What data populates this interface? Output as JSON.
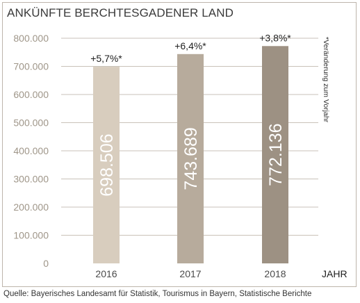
{
  "chart_data": {
    "type": "bar",
    "title": "ANKÜNFTE BERCHTESGADENER LAND",
    "xlabel": "JAHR",
    "ylabel": "",
    "categories": [
      "2016",
      "2017",
      "2018"
    ],
    "values": [
      698506,
      743689,
      772136
    ],
    "value_labels": [
      "698.506",
      "743.689",
      "772.136"
    ],
    "change_labels": [
      "+5,7%*",
      "+6,4%*",
      "+3,8%*"
    ],
    "ylim": [
      0,
      800000
    ],
    "yticks": [
      0,
      100000,
      200000,
      300000,
      400000,
      500000,
      600000,
      700000,
      800000
    ],
    "ytick_labels": [
      "0",
      "100.000",
      "200.000",
      "300.000",
      "400.000",
      "500.000",
      "600.000",
      "700.000",
      "800.000"
    ],
    "bar_colors": [
      "#d8cdbe",
      "#b7ab9c",
      "#9d9183"
    ],
    "grid": true,
    "footnote": "*Veränderung zum Vorjahr",
    "source": "Quelle: Bayerisches Landesamt für Statistik, Tourismus in Bayern, Statistische Berichte"
  }
}
